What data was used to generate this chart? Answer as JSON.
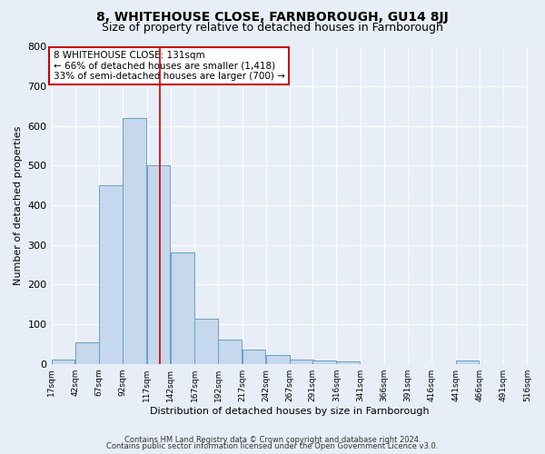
{
  "title": "8, WHITEHOUSE CLOSE, FARNBOROUGH, GU14 8JJ",
  "subtitle": "Size of property relative to detached houses in Farnborough",
  "xlabel": "Distribution of detached houses by size in Farnborough",
  "ylabel": "Number of detached properties",
  "bin_labels": [
    "17sqm",
    "42sqm",
    "67sqm",
    "92sqm",
    "117sqm",
    "142sqm",
    "167sqm",
    "192sqm",
    "217sqm",
    "242sqm",
    "267sqm",
    "291sqm",
    "316sqm",
    "341sqm",
    "366sqm",
    "391sqm",
    "416sqm",
    "441sqm",
    "466sqm",
    "491sqm",
    "516sqm"
  ],
  "bin_edges": [
    17,
    42,
    67,
    92,
    117,
    142,
    167,
    192,
    217,
    242,
    267,
    291,
    316,
    341,
    366,
    391,
    416,
    441,
    466,
    491,
    516
  ],
  "counts": [
    10,
    55,
    450,
    620,
    500,
    280,
    115,
    62,
    35,
    22,
    10,
    8,
    7,
    0,
    0,
    0,
    0,
    8,
    0,
    0
  ],
  "bar_color": "#c5d8ed",
  "bar_edge_color": "#6a9ec5",
  "red_line_x": 131,
  "ylim": [
    0,
    800
  ],
  "annotation_text": "8 WHITEHOUSE CLOSE: 131sqm\n← 66% of detached houses are smaller (1,418)\n33% of semi-detached houses are larger (700) →",
  "annotation_box_color": "#ffffff",
  "annotation_box_edge_color": "#cc0000",
  "footnote1": "Contains HM Land Registry data © Crown copyright and database right 2024.",
  "footnote2": "Contains public sector information licensed under the Open Government Licence v3.0.",
  "bg_color": "#e8eef7",
  "grid_color": "#ffffff",
  "title_fontsize": 10,
  "subtitle_fontsize": 9
}
